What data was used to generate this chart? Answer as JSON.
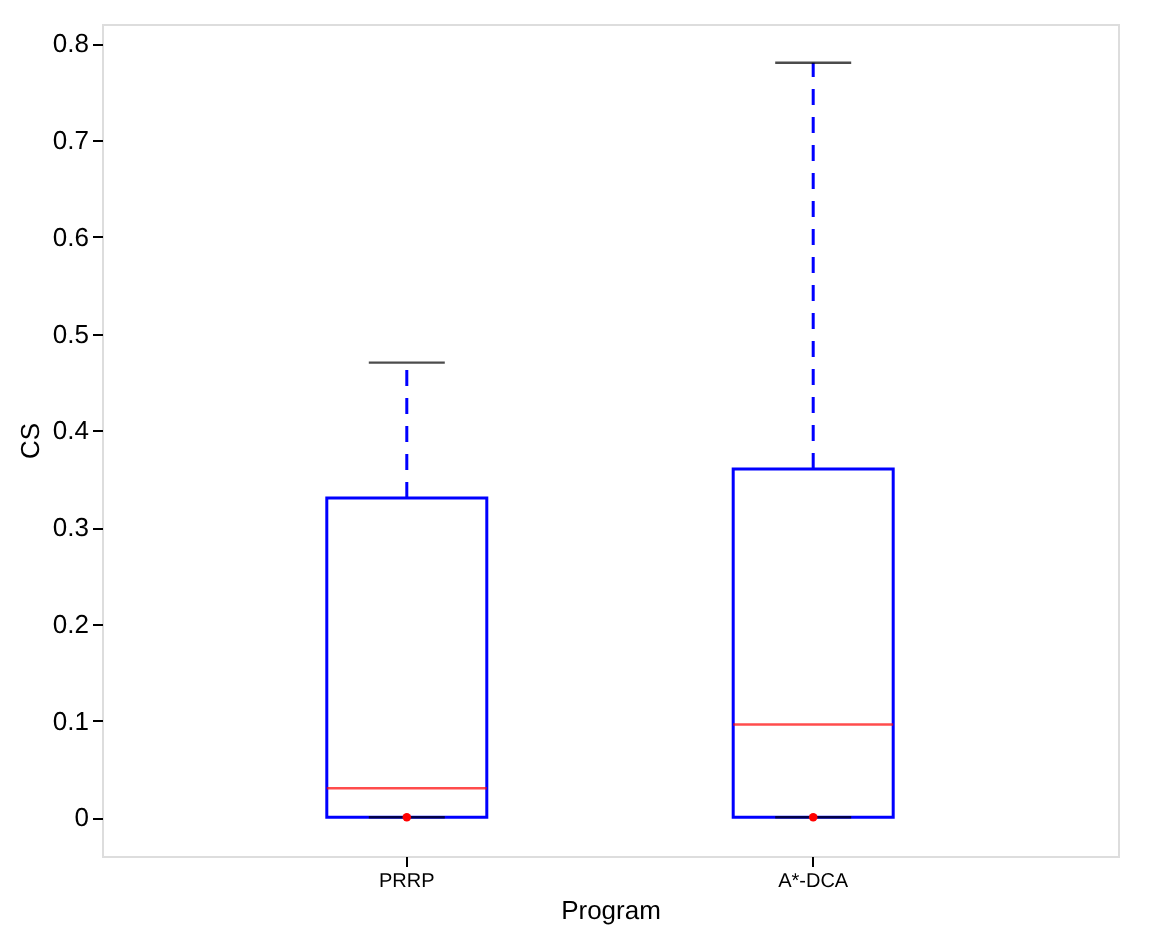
{
  "chart_data": {
    "type": "box",
    "xlabel": "Program",
    "ylabel": "CS",
    "categories": [
      "PRRP",
      "A*-DCA"
    ],
    "series": [
      {
        "color": "#0000ff",
        "boxes": [
          {
            "low": 0,
            "q1": 0,
            "median": 0.03,
            "q3": 0.33,
            "high": 0.47,
            "outliers": [
              0
            ]
          },
          {
            "low": 0,
            "q1": 0,
            "median": 0.096,
            "q3": 0.36,
            "high": 0.78,
            "outliers": [
              0
            ]
          }
        ]
      }
    ],
    "ylim": [
      -0.04,
      0.82
    ],
    "yticks": [
      0,
      0.1,
      0.2,
      0.3,
      0.4,
      0.5,
      0.6,
      0.7,
      0.8
    ],
    "grid": false
  }
}
